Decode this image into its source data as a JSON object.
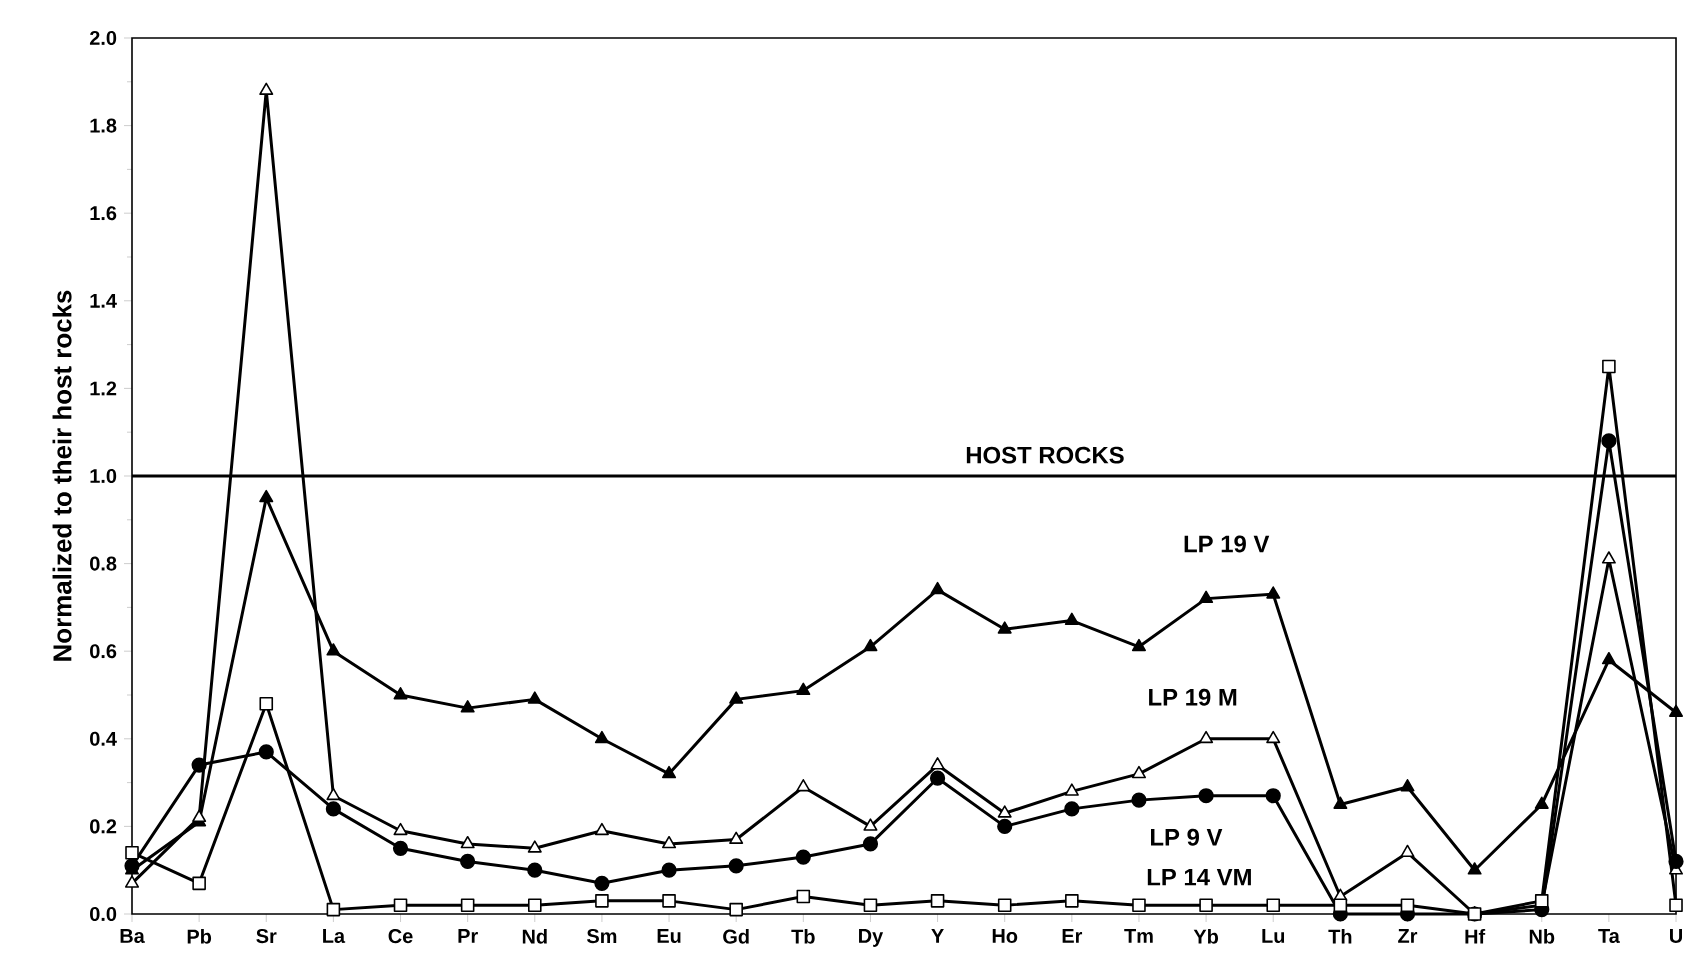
{
  "chart_data": {
    "type": "line",
    "ylabel": "Normalized to their host rocks",
    "categories": [
      "Ba",
      "Pb",
      "Sr",
      "La",
      "Ce",
      "Pr",
      "Nd",
      "Sm",
      "Eu",
      "Gd",
      "Tb",
      "Dy",
      "Y",
      "Ho",
      "Er",
      "Tm",
      "Yb",
      "Lu",
      "Th",
      "Zr",
      "Hf",
      "Nb",
      "Ta",
      "U"
    ],
    "ylim": [
      0,
      2.0
    ],
    "yticks": [
      {
        "value": 0,
        "label": "0.0"
      },
      {
        "value": 0.2,
        "label": "0.2"
      },
      {
        "value": 0.4,
        "label": "0.4"
      },
      {
        "value": 0.6,
        "label": "0.6"
      },
      {
        "value": 0.8,
        "label": "0.8"
      },
      {
        "value": 1.0,
        "label": "1.0"
      },
      {
        "value": 1.2,
        "label": "1.2"
      },
      {
        "value": 1.4,
        "label": "1.4"
      },
      {
        "value": 1.6,
        "label": "1.6"
      },
      {
        "value": 1.8,
        "label": "1.8"
      },
      {
        "value": 2.0,
        "label": "2.0"
      }
    ],
    "grid": false,
    "ref_lines": [
      {
        "axis": "y",
        "value": 1.0,
        "label": "HOST ROCKS",
        "color": "#000000"
      }
    ],
    "series": [
      {
        "name": "LP 19 V",
        "color": "#000000",
        "marker": "triangle",
        "values": [
          0.1,
          0.21,
          0.95,
          0.6,
          0.5,
          0.47,
          0.49,
          0.4,
          0.32,
          0.49,
          0.51,
          0.61,
          0.74,
          0.65,
          0.67,
          0.61,
          0.72,
          0.73,
          0.25,
          0.29,
          0.1,
          0.25,
          0.58,
          0.46
        ]
      },
      {
        "name": "LP 19 M",
        "color": "#000000",
        "marker": "triangle",
        "values": [
          0.07,
          0.22,
          1.88,
          0.27,
          0.19,
          0.16,
          0.15,
          0.19,
          0.16,
          0.17,
          0.29,
          0.2,
          0.34,
          0.23,
          0.28,
          0.32,
          0.4,
          0.4,
          0.04,
          0.14,
          0.0,
          0.02,
          0.81,
          0.1
        ]
      },
      {
        "name": "LP 9 V",
        "color": "#000000",
        "marker": "circle",
        "values": [
          0.11,
          0.34,
          0.37,
          0.24,
          0.15,
          0.12,
          0.1,
          0.07,
          0.1,
          0.11,
          0.13,
          0.16,
          0.31,
          0.2,
          0.24,
          0.26,
          0.27,
          0.27,
          0.0,
          0.0,
          0.0,
          0.01,
          1.08,
          0.12
        ]
      },
      {
        "name": "LP 14 VM",
        "color": "#000000",
        "marker": "square",
        "values": [
          0.14,
          0.07,
          0.48,
          0.01,
          0.02,
          0.02,
          0.02,
          0.03,
          0.03,
          0.01,
          0.04,
          0.02,
          0.03,
          0.02,
          0.03,
          0.02,
          0.02,
          0.02,
          0.02,
          0.02,
          0.0,
          0.03,
          1.25,
          0.02
        ]
      }
    ]
  }
}
